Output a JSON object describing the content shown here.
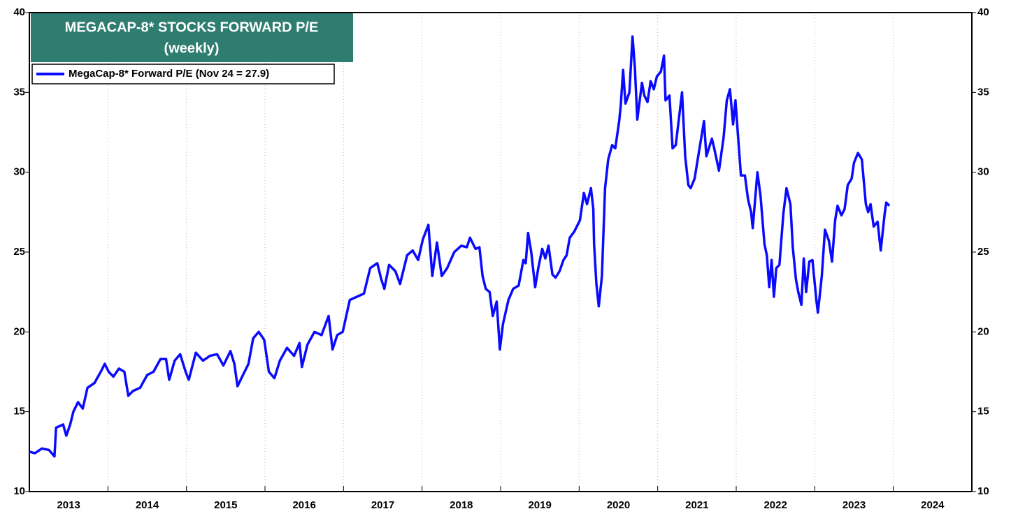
{
  "chart_data": {
    "type": "line",
    "title": "MEGACAP-8* STOCKS FORWARD P/E",
    "subtitle": "(weekly)",
    "x": [
      2013.0,
      2013.07,
      2013.16,
      2013.25,
      2013.32,
      2013.34,
      2013.43,
      2013.47,
      2013.52,
      2013.56,
      2013.62,
      2013.68,
      2013.74,
      2013.83,
      2013.92,
      2013.96,
      2014.01,
      2014.07,
      2014.14,
      2014.21,
      2014.26,
      2014.32,
      2014.41,
      2014.5,
      2014.58,
      2014.67,
      2014.74,
      2014.78,
      2014.85,
      2014.92,
      2014.99,
      2015.03,
      2015.12,
      2015.21,
      2015.3,
      2015.39,
      2015.47,
      2015.56,
      2015.61,
      2015.65,
      2015.72,
      2015.79,
      2015.85,
      2015.92,
      2015.99,
      2016.05,
      2016.12,
      2016.19,
      2016.28,
      2016.37,
      2016.44,
      2016.47,
      2016.54,
      2016.63,
      2016.72,
      2016.81,
      2016.86,
      2016.92,
      2016.99,
      2017.08,
      2017.17,
      2017.26,
      2017.34,
      2017.43,
      2017.48,
      2017.52,
      2017.58,
      2017.66,
      2017.72,
      2017.81,
      2017.88,
      2017.95,
      2018.01,
      2018.08,
      2018.13,
      2018.19,
      2018.25,
      2018.32,
      2018.41,
      2018.5,
      2018.57,
      2018.61,
      2018.68,
      2018.73,
      2018.77,
      2018.81,
      2018.86,
      2018.9,
      2018.95,
      2018.99,
      2019.03,
      2019.1,
      2019.16,
      2019.23,
      2019.29,
      2019.32,
      2019.35,
      2019.39,
      2019.44,
      2019.48,
      2019.53,
      2019.57,
      2019.61,
      2019.66,
      2019.7,
      2019.75,
      2019.8,
      2019.84,
      2019.88,
      2019.94,
      2020.01,
      2020.06,
      2020.1,
      2020.15,
      2020.18,
      2020.19,
      2020.22,
      2020.25,
      2020.29,
      2020.33,
      2020.37,
      2020.42,
      2020.46,
      2020.51,
      2020.53,
      2020.56,
      2020.59,
      2020.64,
      2020.68,
      2020.71,
      2020.74,
      2020.8,
      2020.83,
      2020.87,
      2020.91,
      2020.95,
      2020.99,
      2021.04,
      2021.08,
      2021.1,
      2021.15,
      2021.19,
      2021.23,
      2021.31,
      2021.35,
      2021.39,
      2021.42,
      2021.47,
      2021.5,
      2021.55,
      2021.59,
      2021.62,
      2021.69,
      2021.72,
      2021.78,
      2021.84,
      2021.88,
      2021.92,
      2021.96,
      2021.99,
      2022.02,
      2022.06,
      2022.11,
      2022.15,
      2022.19,
      2022.21,
      2022.27,
      2022.31,
      2022.36,
      2022.39,
      2022.42,
      2022.45,
      2022.48,
      2022.51,
      2022.55,
      2022.6,
      2022.64,
      2022.69,
      2022.72,
      2022.76,
      2022.79,
      2022.83,
      2022.86,
      2022.89,
      2022.93,
      2022.97,
      2023.02,
      2023.04,
      2023.09,
      2023.13,
      2023.18,
      2023.22,
      2023.26,
      2023.29,
      2023.34,
      2023.38,
      2023.42,
      2023.47,
      2023.5,
      2023.55,
      2023.6,
      2023.65,
      2023.68,
      2023.71,
      2023.75,
      2023.8,
      2023.84,
      2023.89,
      2023.91,
      2023.95
    ],
    "series": [
      {
        "name": "MegaCap-8* Forward P/E (Nov 24 = 27.9)",
        "color": "#0a0aff",
        "values": [
          12.5,
          12.4,
          12.7,
          12.6,
          12.2,
          14.0,
          14.2,
          13.5,
          14.2,
          15.0,
          15.6,
          15.2,
          16.5,
          16.8,
          17.6,
          18.0,
          17.5,
          17.2,
          17.7,
          17.5,
          16.0,
          16.3,
          16.5,
          17.3,
          17.5,
          18.3,
          18.3,
          17.0,
          18.2,
          18.6,
          17.5,
          17.0,
          18.7,
          18.2,
          18.5,
          18.6,
          17.9,
          18.8,
          18.0,
          16.6,
          17.3,
          18.0,
          19.6,
          20.0,
          19.5,
          17.5,
          17.1,
          18.2,
          19.0,
          18.5,
          19.3,
          17.8,
          19.2,
          20.0,
          19.8,
          21.0,
          18.9,
          19.8,
          20.0,
          22.0,
          22.2,
          22.4,
          24.0,
          24.3,
          23.3,
          22.7,
          24.2,
          23.8,
          23.0,
          24.8,
          25.1,
          24.5,
          25.8,
          26.7,
          23.5,
          25.6,
          23.5,
          24.0,
          25.0,
          25.4,
          25.3,
          25.9,
          25.2,
          25.3,
          23.5,
          22.7,
          22.5,
          21.0,
          21.9,
          18.9,
          20.5,
          22.0,
          22.7,
          22.9,
          24.5,
          24.3,
          26.2,
          25.0,
          22.8,
          24.0,
          25.2,
          24.6,
          25.4,
          23.6,
          23.4,
          23.8,
          24.5,
          24.8,
          25.9,
          26.3,
          27.0,
          28.7,
          28.0,
          29.0,
          27.7,
          25.5,
          23.0,
          21.6,
          23.5,
          29.0,
          30.8,
          31.7,
          31.5,
          33.2,
          34.2,
          36.4,
          34.3,
          35.0,
          38.5,
          36.5,
          33.3,
          35.6,
          34.8,
          34.4,
          35.7,
          35.2,
          36.0,
          36.3,
          37.3,
          34.5,
          34.8,
          31.5,
          31.7,
          35.0,
          31.0,
          29.2,
          29.0,
          29.6,
          30.5,
          32.0,
          33.2,
          31.0,
          32.1,
          31.5,
          30.1,
          32.2,
          34.5,
          35.2,
          33.0,
          34.5,
          32.5,
          29.8,
          29.8,
          28.3,
          27.5,
          26.5,
          30.0,
          28.5,
          25.5,
          24.8,
          22.8,
          24.5,
          22.2,
          24.0,
          24.2,
          27.4,
          29.0,
          28.0,
          25.3,
          23.3,
          22.5,
          21.7,
          24.6,
          22.5,
          24.4,
          24.5,
          22.0,
          21.2,
          23.5,
          26.4,
          25.7,
          24.4,
          27.0,
          27.9,
          27.3,
          27.7,
          29.2,
          29.6,
          30.6,
          31.2,
          30.8,
          28.0,
          27.5,
          28.0,
          26.6,
          26.9,
          25.1,
          27.4,
          28.1,
          27.9
        ]
      }
    ],
    "xlim": [
      2013,
      2025
    ],
    "xticks": [
      {
        "value": 2013.5,
        "label": "2013"
      },
      {
        "value": 2014.5,
        "label": "2014"
      },
      {
        "value": 2015.5,
        "label": "2015"
      },
      {
        "value": 2016.5,
        "label": "2016"
      },
      {
        "value": 2017.5,
        "label": "2017"
      },
      {
        "value": 2018.5,
        "label": "2018"
      },
      {
        "value": 2019.5,
        "label": "2019"
      },
      {
        "value": 2020.5,
        "label": "2020"
      },
      {
        "value": 2021.5,
        "label": "2021"
      },
      {
        "value": 2022.5,
        "label": "2022"
      },
      {
        "value": 2023.5,
        "label": "2023"
      },
      {
        "value": 2024.5,
        "label": "2024"
      }
    ],
    "xgrid": [
      2014,
      2015,
      2016,
      2017,
      2018,
      2019,
      2020,
      2021,
      2022,
      2023,
      2024
    ],
    "ylim": [
      10,
      40
    ],
    "yticks": [
      10,
      15,
      20,
      25,
      30,
      35,
      40
    ],
    "y2lim": [
      10,
      40
    ],
    "y2ticks": [
      10,
      15,
      20,
      25,
      30,
      35,
      40
    ],
    "grid": true,
    "legend": "upper left",
    "title_color": "#2e7d70"
  }
}
